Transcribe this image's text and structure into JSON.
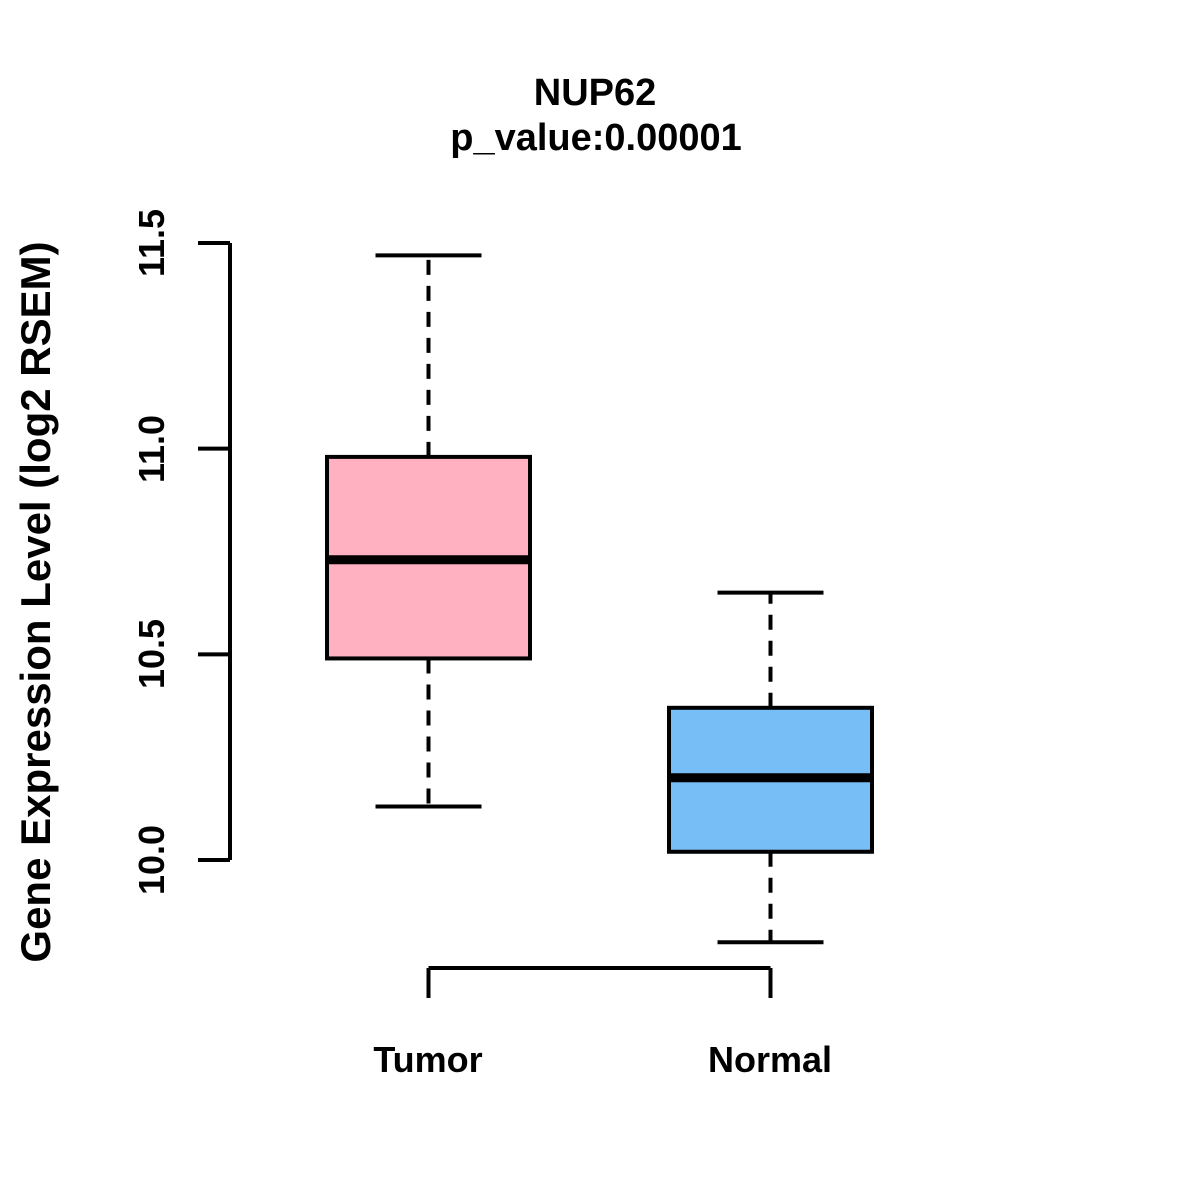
{
  "title": "NUP62",
  "subtitle": "p_value:0.00001",
  "y_axis_title": "Gene Expression Level (log2 RSEM)",
  "colors": {
    "tumor_box": "#FFB1C1",
    "normal_box": "#76BEF5",
    "stroke": "#000000",
    "background": "#FFFFFF"
  },
  "chart_data": {
    "type": "boxplot",
    "title": "NUP62",
    "subtitle": "p_value:0.00001",
    "xlabel": "",
    "ylabel": "Gene Expression Level (log2 RSEM)",
    "categories": [
      "Tumor",
      "Normal"
    ],
    "y_ticks": [
      "10.0",
      "10.5",
      "11.0",
      "11.5"
    ],
    "ylim": [
      9.7,
      11.55
    ],
    "grid": false,
    "legend": null,
    "series": [
      {
        "name": "Tumor",
        "lower_whisker": 10.13,
        "q1": 10.49,
        "median": 10.73,
        "q3": 10.98,
        "upper_whisker": 11.47,
        "color": "#FFB1C1"
      },
      {
        "name": "Normal",
        "lower_whisker": 9.8,
        "q1": 10.02,
        "median": 10.2,
        "q3": 10.37,
        "upper_whisker": 10.65,
        "color": "#76BEF5"
      }
    ]
  }
}
